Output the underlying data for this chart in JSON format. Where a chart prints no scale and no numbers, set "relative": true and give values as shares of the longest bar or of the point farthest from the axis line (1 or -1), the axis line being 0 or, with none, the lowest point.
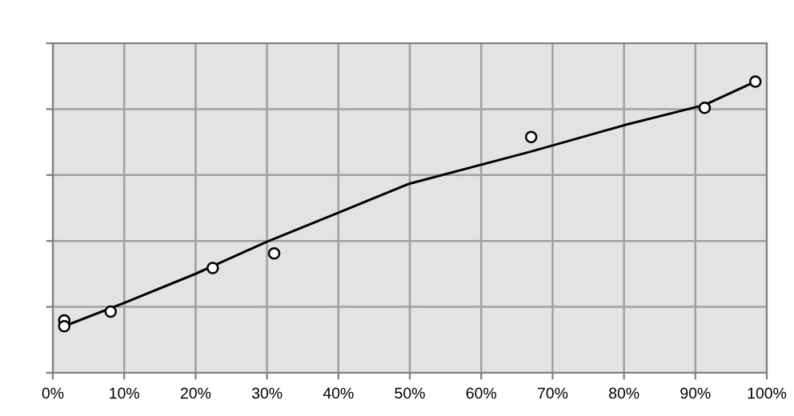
{
  "chart_data": {
    "type": "scatter",
    "relative": true,
    "grid": true,
    "xlim": [
      0,
      100
    ],
    "xticks": [
      {
        "value": 0,
        "label": "0%"
      },
      {
        "value": 10,
        "label": "10%"
      },
      {
        "value": 20,
        "label": "20%"
      },
      {
        "value": 30,
        "label": "30%"
      },
      {
        "value": 40,
        "label": "40%"
      },
      {
        "value": 50,
        "label": "50%"
      },
      {
        "value": 60,
        "label": "60%"
      },
      {
        "value": 70,
        "label": "70%"
      },
      {
        "value": 80,
        "label": "80%"
      },
      {
        "value": 90,
        "label": "90%"
      },
      {
        "value": 100,
        "label": "100%"
      }
    ],
    "series": [
      {
        "marker": "circle",
        "color": "#000000",
        "x": [
          1.6,
          1.6,
          8.1,
          22.4,
          31,
          67,
          91.3,
          98.4
        ],
        "values": [
          0.18,
          0.16,
          0.21,
          0.36,
          0.41,
          0.81,
          0.91,
          1.0
        ]
      },
      {
        "type": "line",
        "marker": "none",
        "color": "#000000",
        "x": [
          1.6,
          10,
          20,
          30,
          40,
          50,
          67,
          80,
          91.3,
          98.4
        ],
        "values": [
          0.16,
          0.24,
          0.34,
          0.45,
          0.55,
          0.65,
          0.76,
          0.85,
          0.92,
          1.0
        ]
      }
    ]
  }
}
